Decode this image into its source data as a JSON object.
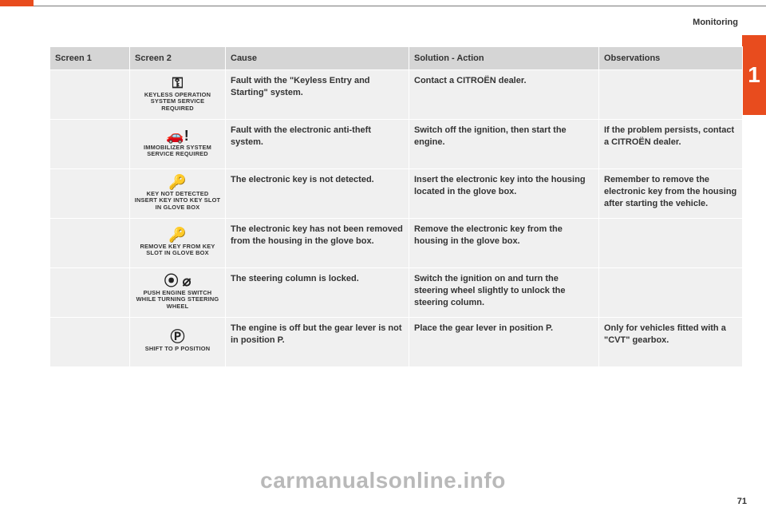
{
  "section_label": "Monitoring",
  "chapter_number": "1",
  "page_number": "71",
  "watermark": "carmanualsonline.info",
  "table": {
    "headers": [
      "Screen 1",
      "Screen 2",
      "Cause",
      "Solution - Action",
      "Observations"
    ],
    "rows": [
      {
        "screen1": "",
        "icon_glyph": "⚿",
        "icon_caption": "KEYLESS OPERATION SYSTEM SERVICE REQUIRED",
        "cause": "Fault with the \"Keyless Entry and Starting\" system.",
        "solution": "Contact a CITROËN dealer.",
        "observations": ""
      },
      {
        "screen1": "",
        "icon_glyph": "🚗!",
        "icon_caption": "IMMOBILIZER SYSTEM SERVICE REQUIRED",
        "cause": "Fault with the electronic anti-theft system.",
        "solution": "Switch off the ignition, then start the engine.",
        "observations": "If the problem persists, contact a CITROËN dealer."
      },
      {
        "screen1": "",
        "icon_glyph": "🔑",
        "icon_caption": "KEY NOT DETECTED INSERT KEY INTO KEY SLOT IN GLOVE BOX",
        "cause": "The electronic key is not detected.",
        "solution": "Insert the electronic key into the housing located in the glove box.",
        "observations": "Remember to remove the electronic key from the housing after starting the vehicle."
      },
      {
        "screen1": "",
        "icon_glyph": "🔑",
        "icon_caption": "REMOVE KEY FROM KEY SLOT IN GLOVE BOX",
        "cause": "The electronic key has not been removed from the housing in the glove box.",
        "solution": "Remove the electronic key from the housing in the glove box.",
        "observations": ""
      },
      {
        "screen1": "",
        "icon_glyph": "⦿ ⌀",
        "icon_caption": "PUSH ENGINE SWITCH WHILE TURNING STEERING WHEEL",
        "cause": "The steering column is locked.",
        "solution": "Switch the ignition on and turn the steering wheel slightly to unlock the steering column.",
        "observations": ""
      },
      {
        "screen1": "",
        "icon_glyph": "Ⓟ",
        "icon_caption": "SHIFT TO P POSITION",
        "cause": "The engine is off but the gear lever is not in position P.",
        "solution": "Place the gear lever in position P.",
        "observations": "Only for vehicles fitted with a \"CVT\" gearbox."
      }
    ]
  },
  "colors": {
    "accent": "#e84c1e",
    "header_bg": "#d5d5d5",
    "cell_bg": "#f0f0f0",
    "text": "#333333",
    "watermark": "#666666"
  }
}
